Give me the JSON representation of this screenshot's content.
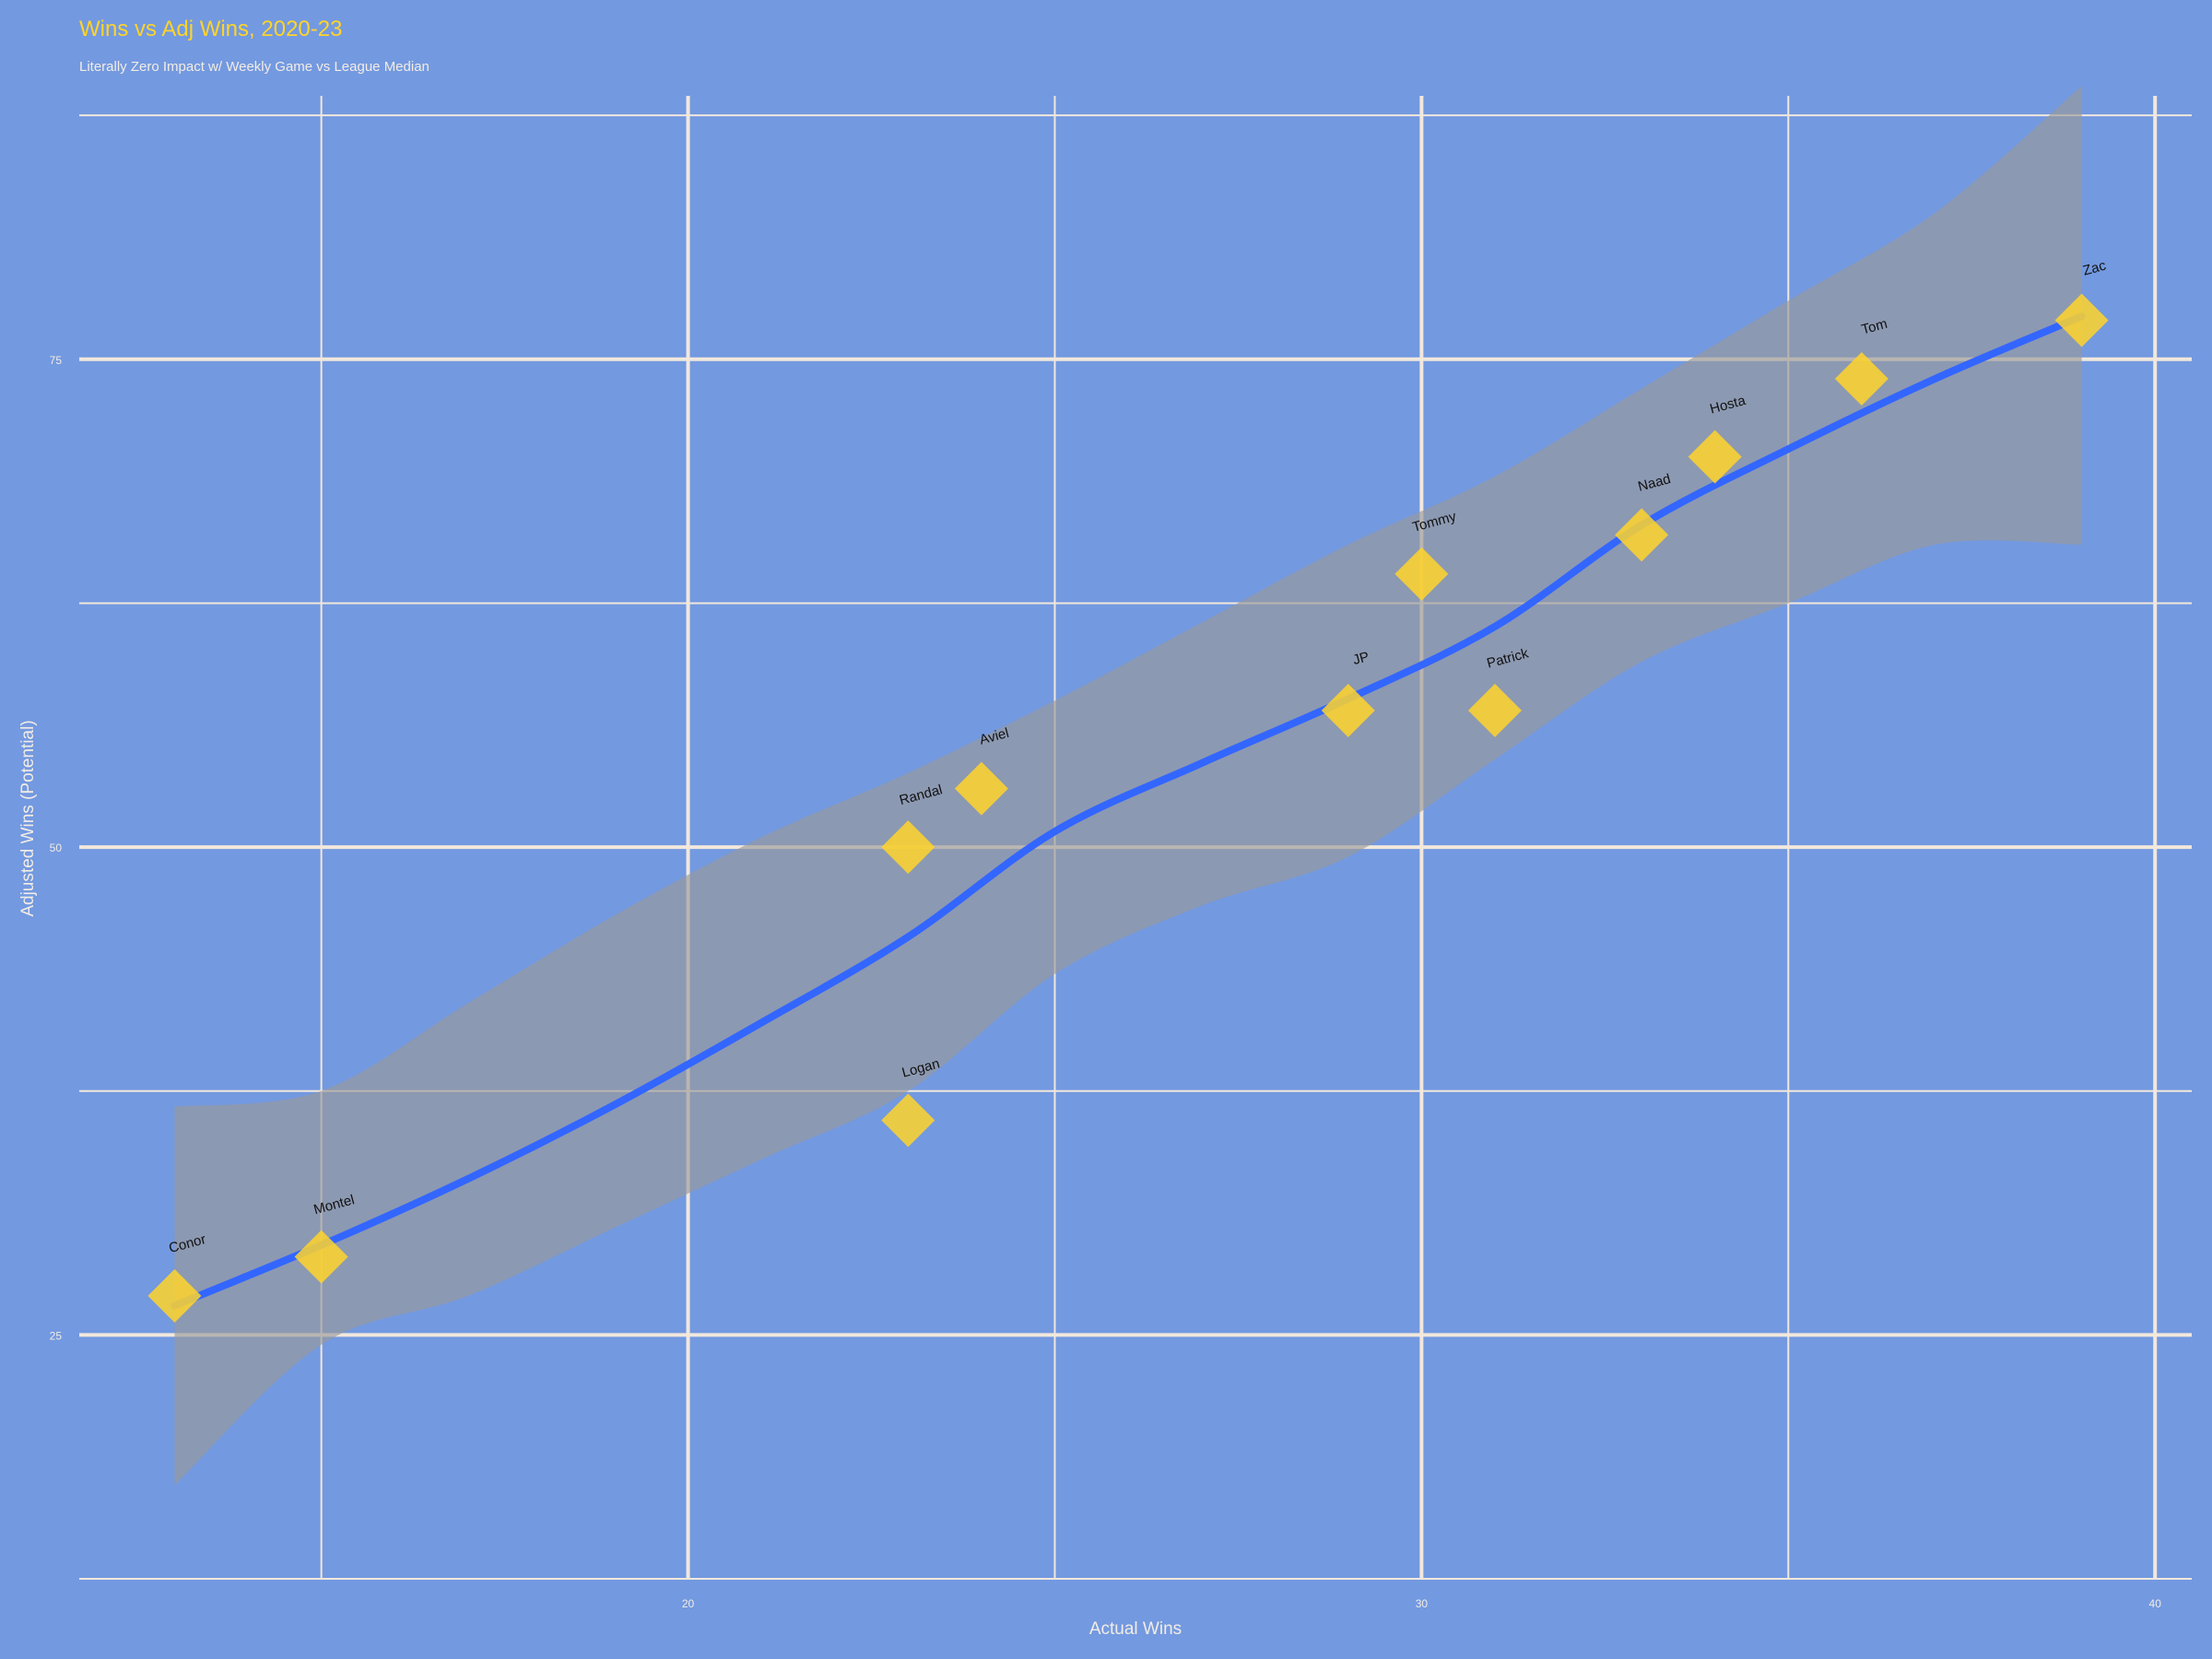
{
  "chart_data": {
    "type": "scatter",
    "title": "Wins vs Adj Wins, 2020-23",
    "subtitle": "Literally Zero Impact w/ Weekly Game vs League Median",
    "xlabel": "Actual Wins",
    "ylabel": "Adjusted Wins (Potential)",
    "xlim": [
      11.7,
      40.5
    ],
    "ylim": [
      12.5,
      88.5
    ],
    "xticks": [
      20,
      30,
      40
    ],
    "yticks": [
      25,
      50,
      75
    ],
    "grid": true,
    "legend": "none",
    "colors": {
      "background": "#7399e0",
      "grid": "#f2e8dc",
      "points": "#ffd42a",
      "smooth_line": "#3366ff",
      "ribbon": "#999999",
      "title": "#ffd42a",
      "axis_text": "#f2ece4",
      "point_label": "#111111"
    },
    "points": [
      {
        "name": "Conor",
        "x": 13,
        "y": 27
      },
      {
        "name": "Montel",
        "x": 15,
        "y": 29
      },
      {
        "name": "Logan",
        "x": 23,
        "y": 36
      },
      {
        "name": "Randal",
        "x": 23,
        "y": 50
      },
      {
        "name": "Aviel",
        "x": 24,
        "y": 53
      },
      {
        "name": "JP",
        "x": 29,
        "y": 57
      },
      {
        "name": "Tommy",
        "x": 30,
        "y": 64
      },
      {
        "name": "Patrick",
        "x": 31,
        "y": 57
      },
      {
        "name": "Naad",
        "x": 33,
        "y": 66
      },
      {
        "name": "Hosta",
        "x": 34,
        "y": 70
      },
      {
        "name": "Tom",
        "x": 36,
        "y": 74
      },
      {
        "name": "Zac",
        "x": 39,
        "y": 77
      }
    ],
    "smooth": {
      "x": [
        13,
        15,
        17,
        19,
        21,
        23,
        25,
        27,
        29,
        31,
        33,
        35,
        37,
        39
      ],
      "y": [
        26.5,
        29.6,
        33.0,
        36.8,
        41.0,
        45.4,
        50.8,
        54.3,
        57.6,
        61.3,
        66.5,
        70.4,
        74.0,
        77.2
      ],
      "ymin": [
        21.5,
        24.5,
        27.0,
        30.5,
        34.0,
        37.5,
        43.5,
        47.0,
        49.5,
        54.5,
        59.5,
        62.5,
        65.5,
        65.5
      ],
      "ymax": [
        36.5,
        37.5,
        42.0,
        46.5,
        50.5,
        53.8,
        57.5,
        61.5,
        65.5,
        69.0,
        73.5,
        78.0,
        82.5,
        89.0
      ],
      "ribbon_start_bounds": [
        17.3,
        36.7
      ]
    }
  }
}
